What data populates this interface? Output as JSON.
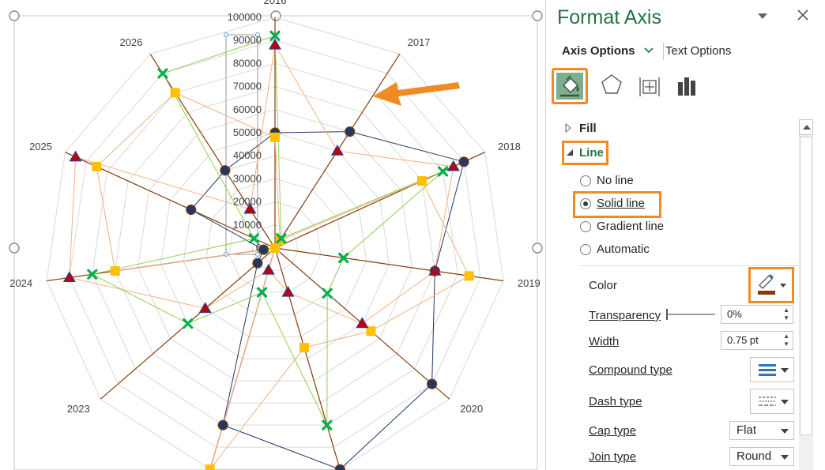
{
  "chart_data": {
    "type": "radar",
    "categories": [
      "2016",
      "2017",
      "2018",
      "2019",
      "2020",
      "2021",
      "2022",
      "2023",
      "2024",
      "2025",
      "2026"
    ],
    "axis_ticks": [
      "0",
      "10000",
      "20000",
      "30000",
      "40000",
      "50000",
      "60000",
      "70000",
      "80000",
      "90000",
      "100000"
    ],
    "ylim": [
      0,
      100000
    ],
    "grid": true,
    "series": [
      {
        "marker": "circle",
        "color": "#1f3864",
        "line": "#203864",
        "values": [
          50000,
          60000,
          90000,
          70000,
          90000,
          100000,
          80000,
          10000,
          5000,
          40000,
          40000
        ]
      },
      {
        "marker": "square",
        "color": "#ffc000",
        "line": "#f4b183",
        "values": [
          48000,
          4000,
          70000,
          85000,
          55000,
          45000,
          100000,
          0,
          70000,
          85000,
          80000
        ]
      },
      {
        "marker": "triangle",
        "color": "#c00000",
        "line": "#f4b183",
        "values": [
          88000,
          50000,
          85000,
          70000,
          50000,
          20000,
          10000,
          40000,
          90000,
          95000,
          20000
        ]
      },
      {
        "marker": "x",
        "color": "#00b050",
        "line": "#92d050",
        "values": [
          92000,
          5000,
          80000,
          30000,
          30000,
          80000,
          20000,
          50000,
          80000,
          10000,
          90000
        ]
      }
    ]
  },
  "panel": {
    "title": "Format Axis",
    "dropdown_icon": "caret-down-icon",
    "close_icon": "close-icon",
    "tab_axis_options": "Axis Options",
    "tab_text_options": "Text Options",
    "icons": [
      "fill-line-icon",
      "effects-pentagon-icon",
      "size-properties-icon",
      "axis-options-bar-icon"
    ],
    "section_fill": "Fill",
    "section_line": "Line",
    "radio_no_line": "No line",
    "radio_solid_line": "Solid line",
    "radio_gradient_line": "Gradient line",
    "radio_automatic": "Automatic",
    "label_color": "Color",
    "label_transparency": "Transparency",
    "value_transparency": "0%",
    "label_width": "Width",
    "value_width": "0.75 pt",
    "label_compound": "Compound type",
    "label_dash": "Dash type",
    "label_cap": "Cap type",
    "value_cap": "Flat",
    "label_join": "Join type",
    "value_join": "Round",
    "accent_color": "#217346",
    "highlight_color": "#f08a24",
    "line_color_swatch": "#843c0c"
  }
}
